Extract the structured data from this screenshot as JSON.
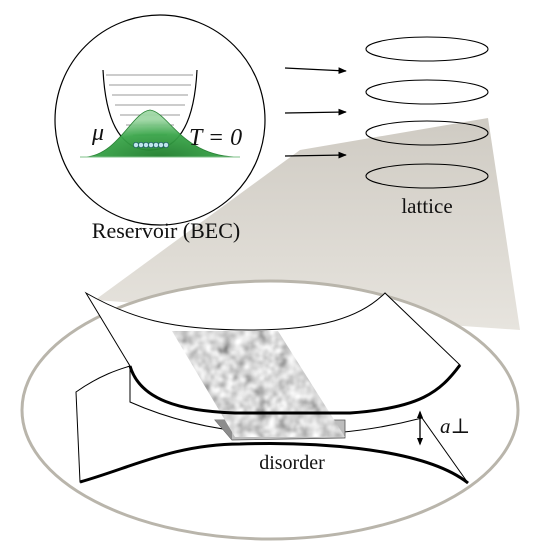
{
  "reservoir": {
    "caption": "Reservoir (BEC)",
    "mu_label": "μ",
    "temperature_label": "T = 0"
  },
  "lattice": {
    "caption": "lattice",
    "layer_count": 4
  },
  "zoom": {
    "disorder_label": "disorder",
    "spacing_label": "a⊥"
  },
  "colors": {
    "bec_green": "#2e9a3c",
    "zoom_fill": "#d6d3cc",
    "zoom_stroke": "#b9b5ab",
    "disorder_gray": "#bdbdbd"
  }
}
